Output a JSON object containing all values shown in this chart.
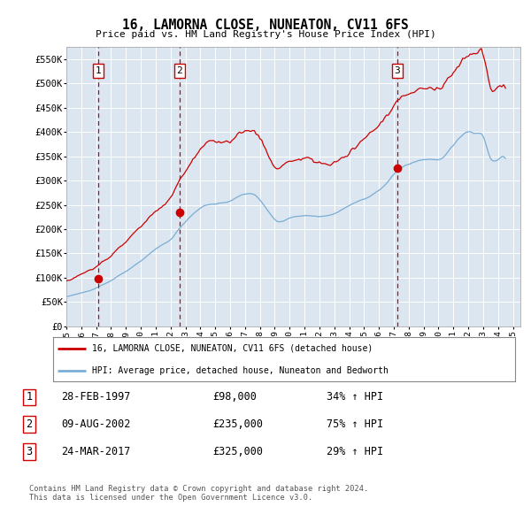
{
  "title": "16, LAMORNA CLOSE, NUNEATON, CV11 6FS",
  "subtitle": "Price paid vs. HM Land Registry's House Price Index (HPI)",
  "background_color": "#dce6f1",
  "plot_bg_color": "#dce6f1",
  "ylim": [
    0,
    575000
  ],
  "yticks": [
    0,
    50000,
    100000,
    150000,
    200000,
    250000,
    300000,
    350000,
    400000,
    450000,
    500000,
    550000
  ],
  "ytick_labels": [
    "£0",
    "£50K",
    "£100K",
    "£150K",
    "£200K",
    "£250K",
    "£300K",
    "£350K",
    "£400K",
    "£450K",
    "£500K",
    "£550K"
  ],
  "xlim_start": 1995.0,
  "xlim_end": 2025.5,
  "sale_dates": [
    1997.16,
    2002.61,
    2017.23
  ],
  "sale_prices": [
    98000,
    235000,
    325000
  ],
  "sale_labels": [
    "1",
    "2",
    "3"
  ],
  "legend_line1": "16, LAMORNA CLOSE, NUNEATON, CV11 6FS (detached house)",
  "legend_line2": "HPI: Average price, detached house, Nuneaton and Bedworth",
  "table_data": [
    [
      "1",
      "28-FEB-1997",
      "£98,000",
      "34% ↑ HPI"
    ],
    [
      "2",
      "09-AUG-2002",
      "£235,000",
      "75% ↑ HPI"
    ],
    [
      "3",
      "24-MAR-2017",
      "£325,000",
      "29% ↑ HPI"
    ]
  ],
  "footer": "Contains HM Land Registry data © Crown copyright and database right 2024.\nThis data is licensed under the Open Government Licence v3.0.",
  "red_line_color": "#cc0000",
  "blue_line_color": "#7aadd4",
  "dashed_line_color": "#cc0000"
}
